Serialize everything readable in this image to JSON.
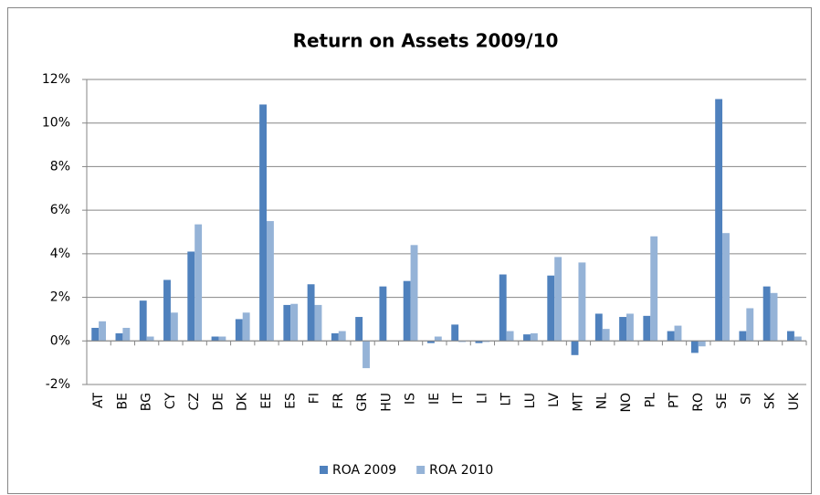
{
  "chart_data": {
    "type": "bar",
    "title": "Return on Assets 2009/10",
    "categories": [
      "AT",
      "BE",
      "BG",
      "CY",
      "CZ",
      "DE",
      "DK",
      "EE",
      "ES",
      "FI",
      "FR",
      "GR",
      "HU",
      "IS",
      "IE",
      "IT",
      "LI",
      "LT",
      "LU",
      "LV",
      "MT",
      "NL",
      "NO",
      "PL",
      "PT",
      "RO",
      "SE",
      "SI",
      "SK",
      "UK"
    ],
    "series": [
      {
        "name": "ROA 2009",
        "color": "#4f81bd",
        "values": [
          0.6,
          0.35,
          1.85,
          2.8,
          4.1,
          0.2,
          1.0,
          10.85,
          1.65,
          2.6,
          0.35,
          1.1,
          2.5,
          2.75,
          -0.1,
          0.75,
          -0.1,
          3.05,
          0.3,
          3.0,
          -0.65,
          1.25,
          1.1,
          1.15,
          0.45,
          -0.55,
          11.1,
          0.45,
          2.5,
          0.45
        ]
      },
      {
        "name": "ROA 2010",
        "color": "#95b3d7",
        "values": [
          0.9,
          0.6,
          0.2,
          1.3,
          5.35,
          0.2,
          1.3,
          5.5,
          1.7,
          1.65,
          0.45,
          -1.25,
          null,
          4.4,
          0.2,
          -0.05,
          -0.05,
          0.45,
          0.35,
          3.85,
          3.6,
          0.55,
          1.25,
          4.8,
          0.7,
          -0.25,
          4.95,
          1.5,
          2.2,
          0.2
        ]
      }
    ],
    "ylim": [
      -2,
      12
    ],
    "yticks": [
      {
        "value": -2,
        "label": "-2%"
      },
      {
        "value": 0,
        "label": "0%"
      },
      {
        "value": 2,
        "label": "2%"
      },
      {
        "value": 4,
        "label": "4%"
      },
      {
        "value": 6,
        "label": "6%"
      },
      {
        "value": 8,
        "label": "8%"
      },
      {
        "value": 10,
        "label": "10%"
      },
      {
        "value": 12,
        "label": "12%"
      }
    ],
    "grid": true,
    "legend": "bottom"
  }
}
